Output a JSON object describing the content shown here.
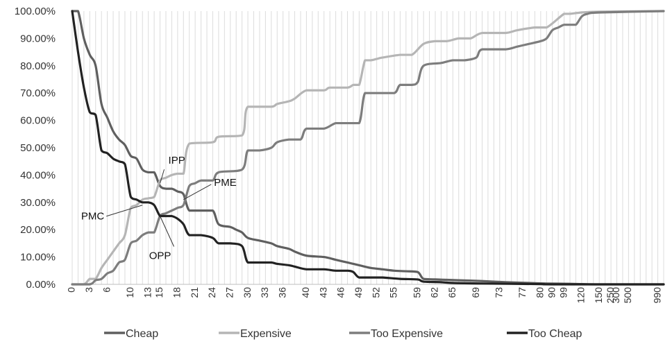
{
  "chart_data": {
    "type": "line",
    "title": "",
    "xlabel": "",
    "ylabel": "",
    "ylim": [
      0,
      100
    ],
    "y_format": "percent_2dp",
    "grid": "vertical gridlines only",
    "legend_position": "bottom",
    "y_ticks": [
      "0.00%",
      "10.00%",
      "20.00%",
      "30.00%",
      "40.00%",
      "50.00%",
      "60.00%",
      "70.00%",
      "80.00%",
      "90.00%",
      "100.00%"
    ],
    "x_categories": [
      0,
      1,
      2,
      3,
      4,
      5,
      6,
      7,
      8,
      9,
      10,
      11,
      12,
      13,
      14,
      15,
      16,
      17,
      18,
      19,
      20,
      21,
      22,
      23,
      24,
      25,
      26,
      27,
      28,
      29,
      30,
      31,
      32,
      33,
      34,
      35,
      36,
      37,
      38,
      39,
      40,
      41,
      42,
      43,
      44,
      45,
      46,
      47,
      48,
      49,
      50,
      51,
      52,
      53,
      54,
      55,
      56,
      57,
      58,
      59,
      60,
      61,
      62,
      63,
      64,
      65,
      66,
      67,
      68,
      69,
      70,
      71,
      72,
      73,
      74,
      75,
      76,
      77,
      78,
      79,
      80,
      85,
      90,
      95,
      99,
      100,
      110,
      120,
      130,
      140,
      150,
      200,
      250,
      300,
      400,
      500,
      600,
      700,
      800,
      900,
      990,
      999
    ],
    "x_tick_labels": [
      "0",
      "3",
      "6",
      "10",
      "13",
      "15",
      "18",
      "21",
      "24",
      "27",
      "30",
      "33",
      "36",
      "40",
      "43",
      "46",
      "49",
      "52",
      "55",
      "59",
      "62",
      "65",
      "69",
      "73",
      "77",
      "80",
      "90",
      "99",
      "120",
      "150",
      "250",
      "300",
      "500",
      "990"
    ],
    "series": [
      {
        "name": "Cheap",
        "color": "#5f5f5f",
        "points": [
          [
            0,
            100
          ],
          [
            1,
            100
          ],
          [
            2,
            90
          ],
          [
            3,
            84
          ],
          [
            4,
            80
          ],
          [
            5,
            66
          ],
          [
            6,
            61
          ],
          [
            7,
            56
          ],
          [
            8,
            53
          ],
          [
            9,
            51
          ],
          [
            10,
            47
          ],
          [
            11,
            46
          ],
          [
            12,
            42
          ],
          [
            13,
            41
          ],
          [
            14,
            41
          ],
          [
            15,
            36
          ],
          [
            16,
            35
          ],
          [
            17,
            35
          ],
          [
            18,
            34
          ],
          [
            19,
            33
          ],
          [
            20,
            27
          ],
          [
            22,
            27
          ],
          [
            24,
            27
          ],
          [
            25,
            22
          ],
          [
            27,
            21
          ],
          [
            28,
            20
          ],
          [
            29,
            19
          ],
          [
            30,
            17
          ],
          [
            32,
            16
          ],
          [
            34,
            15
          ],
          [
            35,
            14
          ],
          [
            37,
            13
          ],
          [
            38,
            12
          ],
          [
            40,
            10.5
          ],
          [
            43,
            10
          ],
          [
            45,
            9
          ],
          [
            47,
            8
          ],
          [
            49,
            7
          ],
          [
            51,
            6
          ],
          [
            53,
            5.5
          ],
          [
            55,
            5
          ],
          [
            57,
            4.8
          ],
          [
            59,
            4.5
          ],
          [
            60,
            2
          ],
          [
            62,
            1.8
          ],
          [
            66,
            1.5
          ],
          [
            70,
            1.2
          ],
          [
            74,
            0.8
          ],
          [
            78,
            0.5
          ],
          [
            85,
            0.3
          ],
          [
            100,
            0.2
          ],
          [
            120,
            0.1
          ],
          [
            150,
            0
          ],
          [
            999,
            0
          ]
        ]
      },
      {
        "name": "Expensive",
        "color": "#b5b5b5",
        "points": [
          [
            0,
            0
          ],
          [
            2,
            0
          ],
          [
            3,
            2
          ],
          [
            4,
            2
          ],
          [
            5,
            6
          ],
          [
            6,
            9
          ],
          [
            7,
            12
          ],
          [
            8,
            15
          ],
          [
            9,
            18
          ],
          [
            10,
            28
          ],
          [
            11,
            29
          ],
          [
            12,
            31
          ],
          [
            13,
            31.5
          ],
          [
            14,
            32
          ],
          [
            15,
            38
          ],
          [
            16,
            39
          ],
          [
            17,
            40
          ],
          [
            18,
            40.5
          ],
          [
            19,
            40.5
          ],
          [
            20,
            51.5
          ],
          [
            24,
            52
          ],
          [
            25,
            54
          ],
          [
            29,
            54.5
          ],
          [
            30,
            65
          ],
          [
            34,
            65
          ],
          [
            35,
            66
          ],
          [
            37,
            67
          ],
          [
            38,
            68
          ],
          [
            40,
            71
          ],
          [
            43,
            71
          ],
          [
            44,
            72
          ],
          [
            47,
            72
          ],
          [
            48,
            73
          ],
          [
            49,
            73
          ],
          [
            50,
            82
          ],
          [
            51,
            82
          ],
          [
            52,
            82.5
          ],
          [
            53,
            83
          ],
          [
            56,
            84
          ],
          [
            58,
            84
          ],
          [
            60,
            88
          ],
          [
            62,
            89
          ],
          [
            64,
            89
          ],
          [
            66,
            90
          ],
          [
            68,
            90
          ],
          [
            70,
            92
          ],
          [
            74,
            92
          ],
          [
            76,
            93
          ],
          [
            79,
            94
          ],
          [
            85,
            94
          ],
          [
            99,
            99
          ],
          [
            100,
            99
          ],
          [
            120,
            99.5
          ],
          [
            150,
            99.8
          ],
          [
            999,
            100
          ]
        ]
      },
      {
        "name": "Too Expensive",
        "color": "#7d7d7d",
        "points": [
          [
            0,
            0
          ],
          [
            3,
            0
          ],
          [
            4,
            1.5
          ],
          [
            5,
            2
          ],
          [
            6,
            4
          ],
          [
            7,
            5
          ],
          [
            8,
            8
          ],
          [
            9,
            9
          ],
          [
            10,
            15
          ],
          [
            11,
            16
          ],
          [
            12,
            18
          ],
          [
            13,
            19
          ],
          [
            14,
            19
          ],
          [
            15,
            25
          ],
          [
            16,
            26
          ],
          [
            17,
            27
          ],
          [
            18,
            28
          ],
          [
            19,
            29
          ],
          [
            20,
            36
          ],
          [
            21,
            37
          ],
          [
            22,
            38
          ],
          [
            24,
            38
          ],
          [
            25,
            41
          ],
          [
            29,
            42
          ],
          [
            30,
            49
          ],
          [
            32,
            49
          ],
          [
            34,
            50
          ],
          [
            35,
            52
          ],
          [
            37,
            53
          ],
          [
            39,
            53
          ],
          [
            40,
            57
          ],
          [
            43,
            57
          ],
          [
            45,
            59
          ],
          [
            47,
            59
          ],
          [
            49,
            59
          ],
          [
            50,
            70
          ],
          [
            52,
            70
          ],
          [
            55,
            70
          ],
          [
            56,
            73
          ],
          [
            58,
            73
          ],
          [
            59,
            74
          ],
          [
            60,
            80
          ],
          [
            63,
            81
          ],
          [
            65,
            82
          ],
          [
            67,
            82
          ],
          [
            69,
            83
          ],
          [
            70,
            86
          ],
          [
            74,
            86
          ],
          [
            76,
            87
          ],
          [
            78,
            88
          ],
          [
            80,
            89
          ],
          [
            85,
            90
          ],
          [
            90,
            93
          ],
          [
            95,
            94
          ],
          [
            99,
            95
          ],
          [
            100,
            95
          ],
          [
            110,
            95
          ],
          [
            120,
            98
          ],
          [
            130,
            99
          ],
          [
            150,
            99.5
          ],
          [
            999,
            100
          ]
        ]
      },
      {
        "name": "Too Cheap",
        "color": "#222222",
        "points": [
          [
            0,
            100
          ],
          [
            1,
            85
          ],
          [
            2,
            72
          ],
          [
            3,
            63
          ],
          [
            4,
            62
          ],
          [
            5,
            49
          ],
          [
            6,
            48
          ],
          [
            7,
            46
          ],
          [
            8,
            45
          ],
          [
            9,
            44
          ],
          [
            10,
            32
          ],
          [
            11,
            31
          ],
          [
            12,
            30
          ],
          [
            13,
            30
          ],
          [
            14,
            29
          ],
          [
            15,
            25
          ],
          [
            16,
            25
          ],
          [
            17,
            25
          ],
          [
            18,
            24
          ],
          [
            19,
            22
          ],
          [
            20,
            18
          ],
          [
            22,
            18
          ],
          [
            24,
            17
          ],
          [
            25,
            15
          ],
          [
            27,
            15
          ],
          [
            29,
            14
          ],
          [
            30,
            8
          ],
          [
            32,
            8
          ],
          [
            34,
            8
          ],
          [
            35,
            7.5
          ],
          [
            37,
            7
          ],
          [
            38,
            6.5
          ],
          [
            40,
            5.5
          ],
          [
            43,
            5.5
          ],
          [
            45,
            5
          ],
          [
            47,
            5
          ],
          [
            48,
            4.5
          ],
          [
            49,
            2.5
          ],
          [
            51,
            2.5
          ],
          [
            53,
            2.5
          ],
          [
            56,
            2
          ],
          [
            59,
            1.8
          ],
          [
            60,
            1
          ],
          [
            63,
            0.8
          ],
          [
            65,
            0.5
          ],
          [
            70,
            0.3
          ],
          [
            80,
            0.1
          ],
          [
            90,
            0
          ],
          [
            999,
            0
          ]
        ]
      }
    ],
    "annotations": [
      {
        "text": "IPP",
        "x": 15,
        "y": 37
      },
      {
        "text": "PME",
        "x": 19,
        "y": 31
      },
      {
        "text": "PMC",
        "x": 12,
        "y": 29
      },
      {
        "text": "OPP",
        "x": 15,
        "y": 25
      }
    ]
  }
}
